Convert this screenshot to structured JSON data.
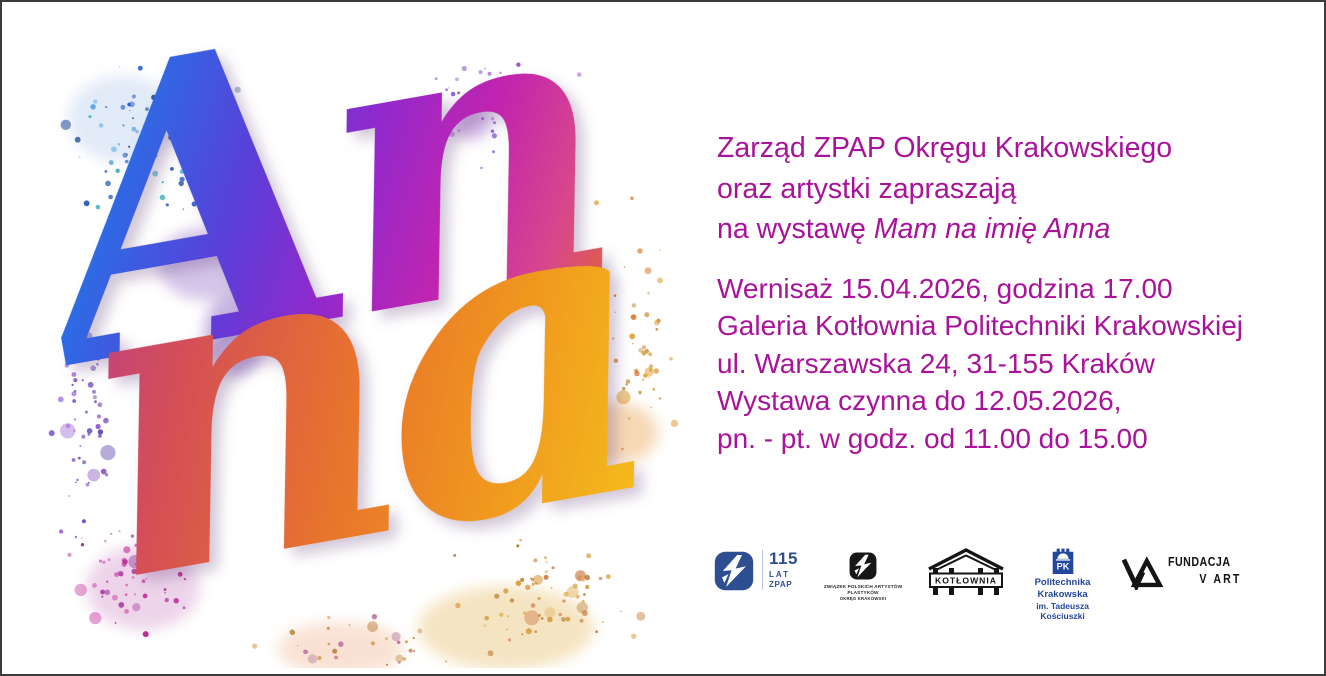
{
  "poster": {
    "background": "#ffffff",
    "border_color": "#3c3c3c",
    "accent_magenta": "#a91399"
  },
  "artwork": {
    "word_top": "An",
    "word_bottom": "na",
    "description": "3D chrome script lettering Anna with colorful paint splatter",
    "colors": {
      "blue": "#2e6ae4",
      "purple": "#9229cc",
      "magenta": "#c224ae",
      "orange": "#e8752c",
      "gold": "#f4bc1c"
    }
  },
  "invitation": {
    "line1": "Zarząd ZPAP Okręgu Krakowskiego",
    "line2": "oraz artystki zapraszają",
    "line3_prefix": "na wystawę ",
    "exhibition_title": "Mam na imię Anna"
  },
  "details": {
    "lines": [
      "Wernisaż 15.04.2026, godzina 17.00",
      "Galeria Kotłownia Politechniki Krakowskiej",
      "ul. Warszawska 24, 31-155 Kraków",
      "Wystawa czynna do 12.05.2026,",
      "pn. - pt. w godz. od 11.00 do 15.00"
    ]
  },
  "logos": {
    "zpap_115": {
      "number": "115",
      "lat": "LAT",
      "zpap": "ZPAP",
      "color": "#2d4f92"
    },
    "zpap_krakow": {
      "line1": "ZWIĄZEK POLSKICH ARTYSTÓW PLASTYKÓW",
      "line2": "OKRĘG KRAKOWSKI"
    },
    "kotlownia": {
      "label": "KOTŁOWNIA"
    },
    "pk": {
      "monogram": "PK",
      "line1": "Politechnika Krakowska",
      "line2": "im. Tadeusza Kościuszki",
      "color": "#24479e"
    },
    "v_art": {
      "line1": "FUNDACJA",
      "line2": "V ART"
    }
  }
}
